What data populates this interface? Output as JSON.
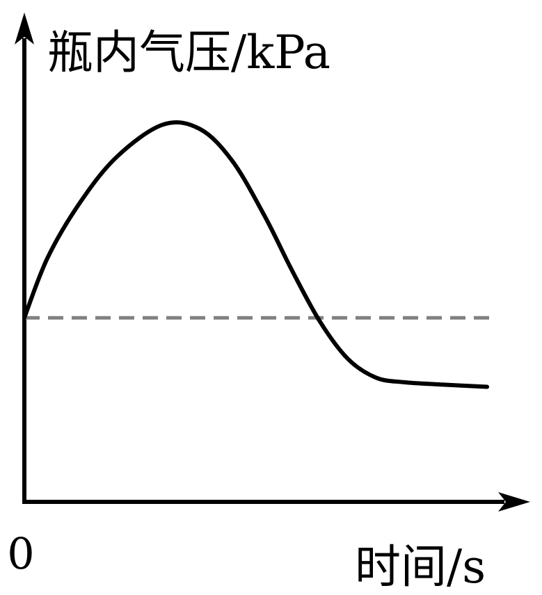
{
  "chart_data": {
    "type": "line",
    "ylabel": "瓶内气压/kPa",
    "xlabel": "时间/s",
    "origin_label": "0",
    "xlim": [
      0,
      100
    ],
    "ylim": [
      0,
      100
    ],
    "series": [
      {
        "x": [
          0,
          5,
          12,
          20,
          30,
          38,
          45,
          52,
          58,
          64,
          70,
          76,
          82,
          90,
          100
        ],
        "y": [
          40,
          53,
          65,
          75,
          82,
          81,
          74,
          62,
          50,
          39,
          31,
          27,
          26,
          25.5,
          25
        ],
        "color": "#000000"
      }
    ],
    "reference_line": {
      "y": 40,
      "style": "dashed",
      "color": "#808080"
    },
    "grid": false,
    "legend": "none"
  }
}
